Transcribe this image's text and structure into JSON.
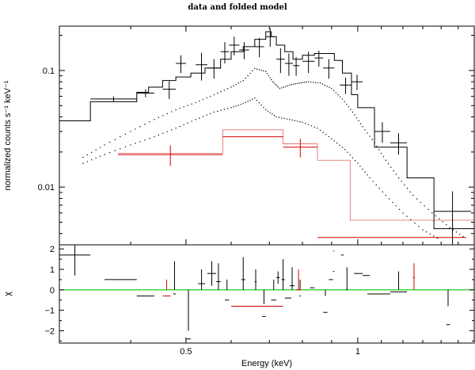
{
  "chart_data": {
    "type": "scatter",
    "title": "data and folded model",
    "xlabel": "Energy (keV)",
    "xscale": "log",
    "xlim": [
      0.3,
      1.6
    ],
    "x_ticks": [
      {
        "v": 0.5,
        "label": "0.5"
      },
      {
        "v": 1.0,
        "label": "1"
      }
    ],
    "top_panel": {
      "ylabel": "normalized counts s⁻¹ keV⁻¹",
      "yscale": "log",
      "ylim": [
        0.0032,
        0.24
      ],
      "y_ticks": [
        {
          "v": 0.1,
          "label": "0.1"
        },
        {
          "v": 0.01,
          "label": "0.01"
        }
      ],
      "series": [
        {
          "name": "black data",
          "color": "#000000",
          "points": [
            {
              "x0": 0.3,
              "x1": 0.34,
              "y": 0.037,
              "yerr": 0.0
            },
            {
              "x0": 0.34,
              "x1": 0.41,
              "y": 0.057,
              "yerr": 0.003
            },
            {
              "x0": 0.41,
              "x1": 0.44,
              "y": 0.064,
              "yerr": 0.005
            },
            {
              "x0": 0.455,
              "x1": 0.48,
              "y": 0.069,
              "yerr": 0.012
            },
            {
              "x0": 0.48,
              "x1": 0.5,
              "y": 0.115,
              "yerr": 0.02
            },
            {
              "x0": 0.52,
              "x1": 0.545,
              "y": 0.112,
              "yerr": 0.03
            },
            {
              "x0": 0.545,
              "x1": 0.575,
              "y": 0.105,
              "yerr": 0.02
            },
            {
              "x0": 0.575,
              "x1": 0.595,
              "y": 0.145,
              "yerr": 0.03
            },
            {
              "x0": 0.595,
              "x1": 0.62,
              "y": 0.165,
              "yerr": 0.03
            },
            {
              "x0": 0.62,
              "x1": 0.645,
              "y": 0.15,
              "yerr": 0.025
            },
            {
              "x0": 0.66,
              "x1": 0.685,
              "y": 0.16,
              "yerr": 0.03
            },
            {
              "x0": 0.69,
              "x1": 0.715,
              "y": 0.195,
              "yerr": 0.035
            },
            {
              "x0": 0.72,
              "x1": 0.745,
              "y": 0.125,
              "yerr": 0.03
            },
            {
              "x0": 0.745,
              "x1": 0.77,
              "y": 0.115,
              "yerr": 0.025
            },
            {
              "x0": 0.77,
              "x1": 0.79,
              "y": 0.11,
              "yerr": 0.02
            },
            {
              "x0": 0.8,
              "x1": 0.84,
              "y": 0.12,
              "yerr": 0.025
            },
            {
              "x0": 0.84,
              "x1": 0.87,
              "y": 0.128,
              "yerr": 0.02
            },
            {
              "x0": 0.87,
              "x1": 0.91,
              "y": 0.105,
              "yerr": 0.02
            },
            {
              "x0": 0.93,
              "x1": 0.975,
              "y": 0.075,
              "yerr": 0.012
            },
            {
              "x0": 0.975,
              "x1": 1.02,
              "y": 0.08,
              "yerr": 0.012
            },
            {
              "x0": 1.07,
              "x1": 1.14,
              "y": 0.03,
              "yerr": 0.006
            },
            {
              "x0": 1.14,
              "x1": 1.22,
              "y": 0.024,
              "yerr": 0.005
            },
            {
              "x0": 1.36,
              "x1": 1.58,
              "y": 0.0062,
              "yerr": 0.003
            }
          ]
        },
        {
          "name": "red data",
          "color": "#d00000",
          "points": [
            {
              "x0": 0.38,
              "x1": 0.58,
              "y": 0.019,
              "yerr": 0.0038
            },
            {
              "x0": 0.58,
              "x1": 0.74,
              "y": 0.027,
              "yerr": 0.0
            },
            {
              "x0": 0.74,
              "x1": 0.85,
              "y": 0.022,
              "yerr": 0.004
            },
            {
              "x0": 0.85,
              "x1": 1.55,
              "y": 0.0037,
              "yerr": 0.0
            }
          ]
        }
      ],
      "models": [
        {
          "name": "black total model",
          "color": "#000000",
          "steps": [
            [
              0.3,
              0.037
            ],
            [
              0.34,
              0.054
            ],
            [
              0.41,
              0.065
            ],
            [
              0.43,
              0.072
            ],
            [
              0.455,
              0.082
            ],
            [
              0.48,
              0.088
            ],
            [
              0.51,
              0.095
            ],
            [
              0.54,
              0.105
            ],
            [
              0.575,
              0.125
            ],
            [
              0.6,
              0.145
            ],
            [
              0.63,
              0.16
            ],
            [
              0.66,
              0.185
            ],
            [
              0.69,
              0.215
            ],
            [
              0.705,
              0.195
            ],
            [
              0.72,
              0.165
            ],
            [
              0.745,
              0.145
            ],
            [
              0.77,
              0.125
            ],
            [
              0.8,
              0.135
            ],
            [
              0.84,
              0.14
            ],
            [
              0.87,
              0.14
            ],
            [
              0.91,
              0.122
            ],
            [
              0.94,
              0.095
            ],
            [
              0.975,
              0.062
            ],
            [
              1.0,
              0.048
            ],
            [
              1.07,
              0.022
            ],
            [
              1.22,
              0.012
            ],
            [
              1.36,
              0.0044
            ],
            [
              1.6,
              0.0044
            ]
          ]
        },
        {
          "name": "red total model",
          "color": "#d00000",
          "steps": [
            [
              0.38,
              0.0195
            ],
            [
              0.58,
              0.031
            ],
            [
              0.74,
              0.0235
            ],
            [
              0.85,
              0.017
            ],
            [
              0.97,
              0.0052
            ],
            [
              1.6,
              0.0052
            ]
          ]
        },
        {
          "name": "model component 1",
          "color": "#000000",
          "points": [
            [
              0.33,
              0.018
            ],
            [
              0.36,
              0.023
            ],
            [
              0.4,
              0.03
            ],
            [
              0.44,
              0.038
            ],
            [
              0.48,
              0.046
            ],
            [
              0.52,
              0.053
            ],
            [
              0.56,
              0.062
            ],
            [
              0.6,
              0.072
            ],
            [
              0.63,
              0.082
            ],
            [
              0.66,
              0.104
            ],
            [
              0.69,
              0.098
            ],
            [
              0.71,
              0.08
            ],
            [
              0.73,
              0.07
            ],
            [
              0.76,
              0.075
            ],
            [
              0.79,
              0.078
            ],
            [
              0.82,
              0.08
            ],
            [
              0.86,
              0.078
            ],
            [
              0.9,
              0.07
            ],
            [
              0.94,
              0.057
            ],
            [
              0.98,
              0.044
            ],
            [
              1.02,
              0.033
            ],
            [
              1.07,
              0.024
            ],
            [
              1.12,
              0.017
            ],
            [
              1.18,
              0.012
            ],
            [
              1.25,
              0.0085
            ],
            [
              1.35,
              0.006
            ],
            [
              1.45,
              0.0045
            ],
            [
              1.55,
              0.0036
            ]
          ]
        },
        {
          "name": "model component 2",
          "color": "#000000",
          "points": [
            [
              0.33,
              0.016
            ],
            [
              0.36,
              0.019
            ],
            [
              0.4,
              0.023
            ],
            [
              0.44,
              0.027
            ],
            [
              0.48,
              0.032
            ],
            [
              0.52,
              0.038
            ],
            [
              0.56,
              0.044
            ],
            [
              0.6,
              0.048
            ],
            [
              0.63,
              0.052
            ],
            [
              0.66,
              0.058
            ],
            [
              0.69,
              0.046
            ],
            [
              0.72,
              0.04
            ],
            [
              0.76,
              0.038
            ],
            [
              0.8,
              0.036
            ],
            [
              0.85,
              0.032
            ],
            [
              0.9,
              0.026
            ],
            [
              0.95,
              0.021
            ],
            [
              1.0,
              0.016
            ],
            [
              1.05,
              0.012
            ],
            [
              1.12,
              0.0085
            ],
            [
              1.2,
              0.006
            ],
            [
              1.3,
              0.0043
            ],
            [
              1.4,
              0.0035
            ]
          ]
        }
      ]
    },
    "bottom_panel": {
      "ylabel": "χ",
      "ylim": [
        -2.6,
        2.2
      ],
      "y_ticks": [
        {
          "v": 2,
          "label": "2"
        },
        {
          "v": 1,
          "label": "1"
        },
        {
          "v": 0,
          "label": "0"
        },
        {
          "v": -1,
          "label": "−1"
        },
        {
          "v": -2,
          "label": "−2"
        }
      ],
      "zero_line_color": "#00cc00",
      "series": [
        {
          "name": "black residuals",
          "color": "#000000",
          "points": [
            {
              "x0": 0.3,
              "x1": 0.34,
              "y": 1.7,
              "yerr": 1.0
            },
            {
              "x0": 0.36,
              "x1": 0.41,
              "y": 0.5,
              "yerr": 0.0
            },
            {
              "x0": 0.41,
              "x1": 0.44,
              "y": -0.3,
              "yerr": 0.0
            },
            {
              "x0": 0.475,
              "x1": 0.48,
              "y": -0.2,
              "yerr": 1.6
            },
            {
              "x0": 0.5,
              "x1": 0.51,
              "y": -2.4,
              "yerr": 0.4
            },
            {
              "x0": 0.525,
              "x1": 0.54,
              "y": 0.3,
              "yerr": 0.7
            },
            {
              "x0": 0.545,
              "x1": 0.565,
              "y": 0.8,
              "yerr": 0.6
            },
            {
              "x0": 0.565,
              "x1": 0.575,
              "y": 0.4,
              "yerr": 0.9
            },
            {
              "x0": 0.585,
              "x1": 0.595,
              "y": -0.5,
              "yerr": 1.0
            },
            {
              "x0": 0.625,
              "x1": 0.635,
              "y": 0.5,
              "yerr": 1.1
            },
            {
              "x0": 0.66,
              "x1": 0.665,
              "y": 0.4,
              "yerr": 0.6
            },
            {
              "x0": 0.68,
              "x1": 0.69,
              "y": -1.3,
              "yerr": 0.6
            },
            {
              "x0": 0.705,
              "x1": 0.72,
              "y": -0.5,
              "yerr": 1.0
            },
            {
              "x0": 0.72,
              "x1": 0.73,
              "y": 0.6,
              "yerr": 0.3
            },
            {
              "x0": 0.735,
              "x1": 0.745,
              "y": 0.5,
              "yerr": 1.0
            },
            {
              "x0": 0.745,
              "x1": 0.765,
              "y": -0.4,
              "yerr": 0.0
            },
            {
              "x0": 0.76,
              "x1": 0.775,
              "y": 0.2,
              "yerr": 0.9
            },
            {
              "x0": 0.79,
              "x1": 0.795,
              "y": -0.3,
              "yerr": 0.8
            },
            {
              "x0": 0.825,
              "x1": 0.84,
              "y": 0.1,
              "yerr": 0.0
            },
            {
              "x0": 0.87,
              "x1": 0.885,
              "y": -1.1,
              "yerr": 0.8
            },
            {
              "x0": 0.89,
              "x1": 0.905,
              "y": 0.5,
              "yerr": 0.0
            },
            {
              "x0": 0.905,
              "x1": 0.91,
              "y": 0.9,
              "yerr": 0.0
            },
            {
              "x0": 0.935,
              "x1": 0.945,
              "y": 1.7,
              "yerr": 0.0
            },
            {
              "x0": 0.955,
              "x1": 0.96,
              "y": 0.0,
              "yerr": 1.1
            },
            {
              "x0": 0.985,
              "x1": 1.02,
              "y": 0.8,
              "yerr": 0.0
            },
            {
              "x0": 1.02,
              "x1": 1.05,
              "y": 0.7,
              "yerr": 0.0
            },
            {
              "x0": 1.04,
              "x1": 1.14,
              "y": -0.2,
              "yerr": 0.0
            },
            {
              "x0": 1.14,
              "x1": 1.22,
              "y": -0.1,
              "yerr": 1.0
            },
            {
              "x0": 1.43,
              "x1": 1.45,
              "y": -1.7,
              "yerr": 0.9
            }
          ]
        },
        {
          "name": "red residuals",
          "color": "#d00000",
          "points": [
            {
              "x0": 0.455,
              "x1": 0.47,
              "y": -0.3,
              "yerr": 0.8
            },
            {
              "x0": 0.6,
              "x1": 0.74,
              "y": -0.8,
              "yerr": 0.0
            },
            {
              "x0": 0.78,
              "x1": 0.795,
              "y": 0.0,
              "yerr": 1.0
            },
            {
              "x0": 0.905,
              "x1": 0.91,
              "y": 1.9,
              "yerr": 0.0
            },
            {
              "x0": 1.25,
              "x1": 1.26,
              "y": 0.6,
              "yerr": 0.7
            }
          ]
        }
      ]
    }
  }
}
